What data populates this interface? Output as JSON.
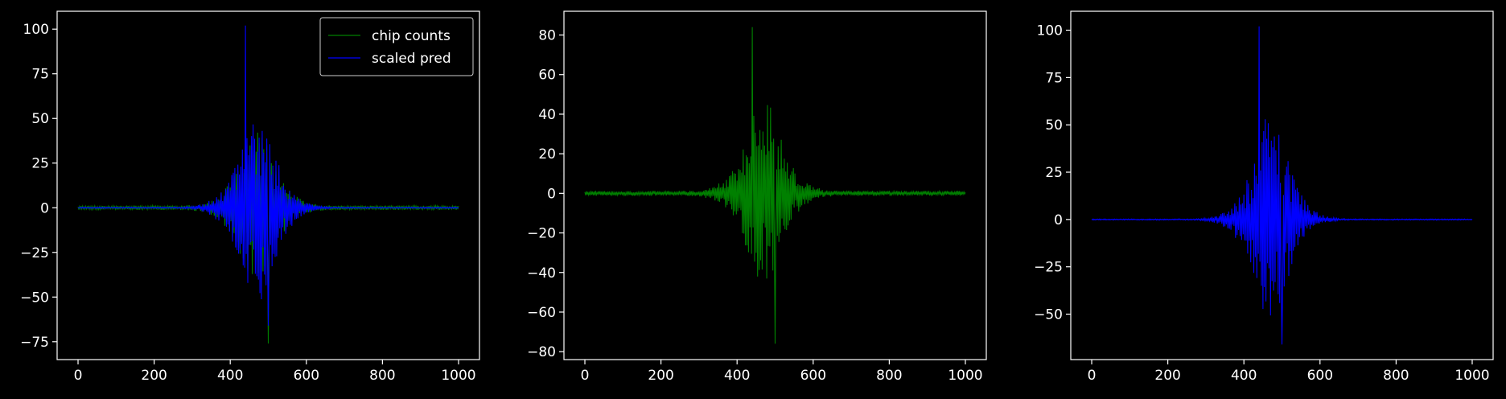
{
  "chart_data": [
    {
      "type": "line",
      "title": "",
      "xlabel": "",
      "ylabel": "",
      "xlim": [
        -55,
        1055
      ],
      "ylim": [
        -85,
        110
      ],
      "xticks": [
        0,
        200,
        400,
        600,
        800,
        1000
      ],
      "yticks": [
        -75,
        -50,
        -25,
        0,
        25,
        50,
        75,
        100
      ],
      "grid": false,
      "legend": "top-right",
      "series": [
        {
          "name": "chip counts",
          "color": "#008000",
          "peak": 42,
          "trough": -76,
          "noise": 1.2
        },
        {
          "name": "scaled pred",
          "color": "#0000ff",
          "peak": 102,
          "trough": -66,
          "noise": 0.3
        }
      ]
    },
    {
      "type": "line",
      "title": "",
      "xlabel": "",
      "ylabel": "",
      "xlim": [
        -55,
        1055
      ],
      "ylim": [
        -84,
        92
      ],
      "xticks": [
        0,
        200,
        400,
        600,
        800,
        1000
      ],
      "yticks": [
        -80,
        -60,
        -40,
        -20,
        0,
        20,
        40,
        60,
        80
      ],
      "grid": false,
      "series": [
        {
          "color": "#008000",
          "peak": 84,
          "trough": -76,
          "noise": 1.3
        }
      ]
    },
    {
      "type": "line",
      "title": "",
      "xlabel": "",
      "ylabel": "",
      "xlim": [
        -55,
        1055
      ],
      "ylim": [
        -74,
        110
      ],
      "xticks": [
        0,
        200,
        400,
        600,
        800,
        1000
      ],
      "yticks": [
        -50,
        -25,
        0,
        25,
        50,
        75,
        100
      ],
      "grid": false,
      "series": [
        {
          "color": "#0000ff",
          "peak": 102,
          "trough": -66,
          "noise": 0.3
        }
      ]
    }
  ]
}
